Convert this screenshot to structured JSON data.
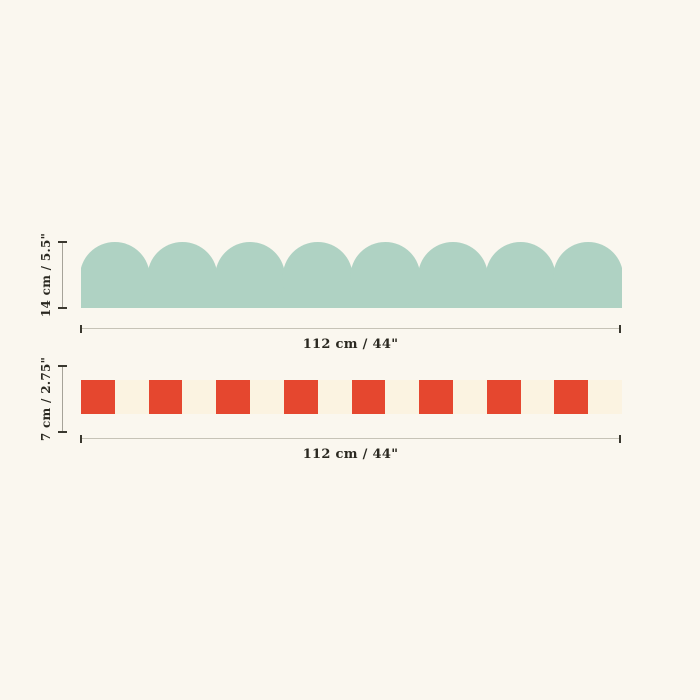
{
  "background": "#faf7ef",
  "text_color": "#2a2820",
  "dimension_lines": {
    "horizontal_line_color": "#c6c3b7",
    "vertical_line_color": "#a6a399",
    "tick_color": "#3a382f"
  },
  "strips": [
    {
      "name": "scalloped border",
      "fill": "#afd2c3",
      "scallop_count": 8,
      "height_label": "14 cm / 5.5\"",
      "width_label": "112 cm / 44\""
    },
    {
      "name": "checkered border",
      "square_count": 16,
      "square_colors": [
        "#e5472f",
        "#fbf3e1"
      ],
      "height_label": "7 cm / 2.75\"",
      "width_label": "112 cm / 44\""
    }
  ]
}
